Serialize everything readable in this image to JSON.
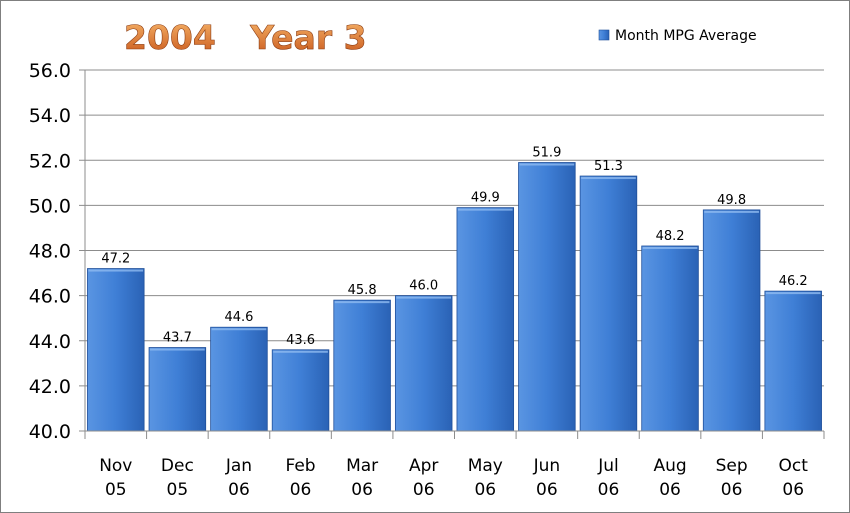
{
  "chart_data": {
    "type": "bar",
    "title": "2004   Year 3",
    "categories": [
      [
        "Nov",
        "05"
      ],
      [
        "Dec",
        "05"
      ],
      [
        "Jan",
        "06"
      ],
      [
        "Feb",
        "06"
      ],
      [
        "Mar",
        "06"
      ],
      [
        "Apr",
        "06"
      ],
      [
        "May",
        "06"
      ],
      [
        "Jun",
        "06"
      ],
      [
        "Jul",
        "06"
      ],
      [
        "Aug",
        "06"
      ],
      [
        "Sep",
        "06"
      ],
      [
        "Oct",
        "06"
      ]
    ],
    "series": [
      {
        "name": "Month MPG Average",
        "values": [
          47.2,
          43.7,
          44.6,
          43.6,
          45.8,
          46.0,
          49.9,
          51.9,
          51.3,
          48.2,
          49.8,
          46.2
        ],
        "color": "#3f7fd6"
      }
    ],
    "data_labels": [
      "47.2",
      "43.7",
      "44.6",
      "43.6",
      "45.8",
      "46.0",
      "49.9",
      "51.9",
      "51.3",
      "48.2",
      "49.8",
      "46.2"
    ],
    "y_ticks": [
      "40.0",
      "42.0",
      "44.0",
      "46.0",
      "48.0",
      "50.0",
      "52.0",
      "54.0",
      "56.0"
    ],
    "ylim": [
      40,
      56
    ],
    "y_step": 2,
    "grid": true,
    "legend_position": "top-right",
    "colors": {
      "bar": "#3f7fd6",
      "bar_dark": "#1f4f9a",
      "title_light": "#f6b26b",
      "title_dark": "#c5561b",
      "grid": "#8c8c8c"
    }
  }
}
